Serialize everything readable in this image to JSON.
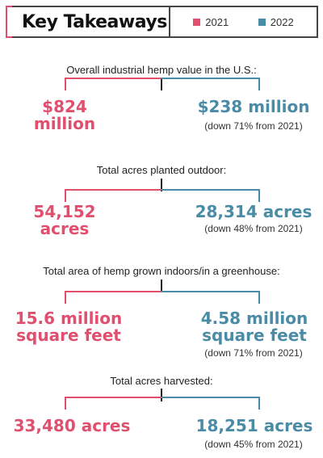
{
  "header": {
    "title": "Key Takeaways",
    "legend": [
      {
        "label": "2021",
        "color": "#e0506e"
      },
      {
        "label": "2022",
        "color": "#4a8ba6"
      }
    ]
  },
  "sections": [
    {
      "question": "Overall industrial hemp value in the U.S.:",
      "value_2021": "$824\nmillion",
      "value_2022": "$238 million",
      "change_2022": "(down 71% from 2021)"
    },
    {
      "question": "Total acres planted outdoor:",
      "value_2021": "54,152\nacres",
      "value_2022": "28,314 acres",
      "change_2022": "(down 48% from 2021)"
    },
    {
      "question": "Total area of hemp grown indoors/in a greenhouse:",
      "value_2021": "15.6 million\nsquare feet",
      "value_2022": "4.58 million\nsquare feet",
      "change_2022": "(down 71% from 2021)"
    },
    {
      "question": "Total acres harvested:",
      "value_2021": "33,480 acres",
      "value_2022": "18,251 acres",
      "change_2022": "(down 45% from 2021)"
    }
  ]
}
